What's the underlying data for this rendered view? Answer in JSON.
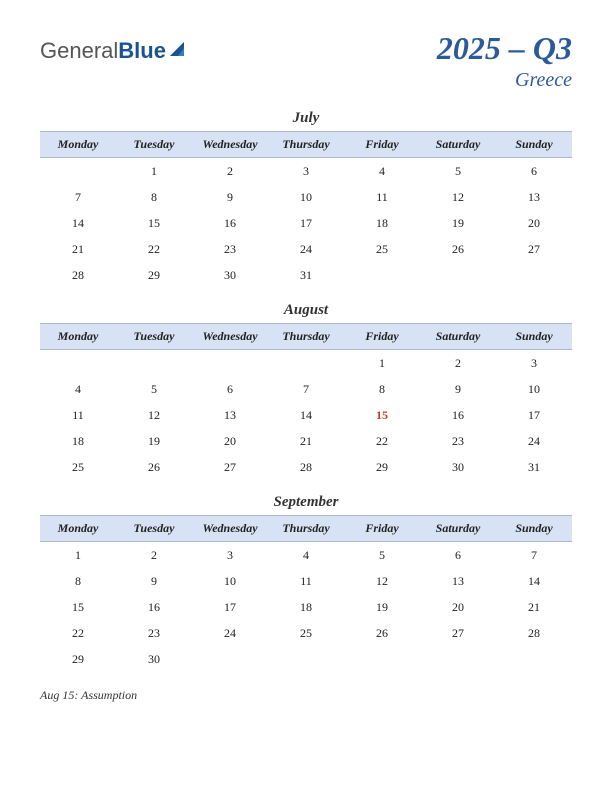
{
  "logo": {
    "part1": "General",
    "part2": "Blue"
  },
  "title": "2025 – Q3",
  "subtitle": "Greece",
  "weekdays": [
    "Monday",
    "Tuesday",
    "Wednesday",
    "Thursday",
    "Friday",
    "Saturday",
    "Sunday"
  ],
  "colors": {
    "header_bg": "#d7e3f4",
    "header_border": "#a8b8d0",
    "title_color": "#2a5a9a",
    "holiday_color": "#c0392b",
    "logo_general": "#555555",
    "logo_blue": "#1a5490",
    "text": "#222222"
  },
  "typography": {
    "title_fontsize": 32,
    "subtitle_fontsize": 20,
    "month_fontsize": 15,
    "weekday_fontsize": 12,
    "cell_fontsize": 12,
    "holiday_list_fontsize": 12,
    "font_family": "Georgia, serif"
  },
  "months": [
    {
      "name": "July",
      "weeks": [
        [
          "",
          "1",
          "2",
          "3",
          "4",
          "5",
          "6"
        ],
        [
          "7",
          "8",
          "9",
          "10",
          "11",
          "12",
          "13"
        ],
        [
          "14",
          "15",
          "16",
          "17",
          "18",
          "19",
          "20"
        ],
        [
          "21",
          "22",
          "23",
          "24",
          "25",
          "26",
          "27"
        ],
        [
          "28",
          "29",
          "30",
          "31",
          "",
          "",
          ""
        ]
      ],
      "holidays": []
    },
    {
      "name": "August",
      "weeks": [
        [
          "",
          "",
          "",
          "",
          "1",
          "2",
          "3"
        ],
        [
          "4",
          "5",
          "6",
          "7",
          "8",
          "9",
          "10"
        ],
        [
          "11",
          "12",
          "13",
          "14",
          "15",
          "16",
          "17"
        ],
        [
          "18",
          "19",
          "20",
          "21",
          "22",
          "23",
          "24"
        ],
        [
          "25",
          "26",
          "27",
          "28",
          "29",
          "30",
          "31"
        ]
      ],
      "holidays": [
        "15"
      ]
    },
    {
      "name": "September",
      "weeks": [
        [
          "1",
          "2",
          "3",
          "4",
          "5",
          "6",
          "7"
        ],
        [
          "8",
          "9",
          "10",
          "11",
          "12",
          "13",
          "14"
        ],
        [
          "15",
          "16",
          "17",
          "18",
          "19",
          "20",
          "21"
        ],
        [
          "22",
          "23",
          "24",
          "25",
          "26",
          "27",
          "28"
        ],
        [
          "29",
          "30",
          "",
          "",
          "",
          "",
          ""
        ]
      ],
      "holidays": []
    }
  ],
  "holiday_list": [
    "Aug 15: Assumption"
  ]
}
